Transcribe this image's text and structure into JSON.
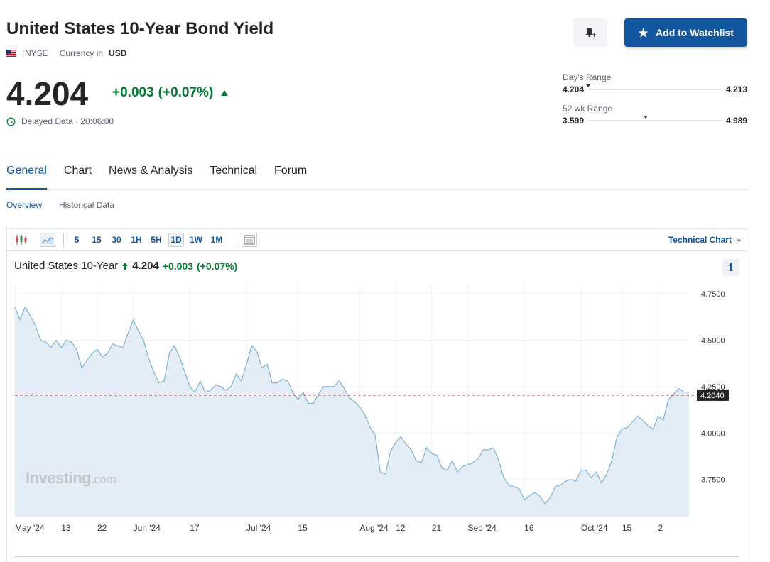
{
  "header": {
    "title": "United States 10-Year Bond Yield",
    "exchange": "NYSE",
    "currency_label": "Currency in",
    "currency": "USD",
    "watchlist_label": "Add to Watchlist"
  },
  "quote": {
    "price": "4.204",
    "change": "+0.003",
    "change_pct": "(+0.07%)",
    "delayed_text": "Delayed Data · 20:06:00"
  },
  "ranges": {
    "day": {
      "label": "Day's Range",
      "low": "4.204",
      "high": "4.213",
      "position": 0.0
    },
    "week52": {
      "label": "52 wk Range",
      "low": "3.599",
      "high": "4.989",
      "position": 0.43
    }
  },
  "tabs": [
    {
      "label": "General",
      "active": true
    },
    {
      "label": "Chart",
      "active": false
    },
    {
      "label": "News & Analysis",
      "active": false
    },
    {
      "label": "Technical",
      "active": false
    },
    {
      "label": "Forum",
      "active": false
    }
  ],
  "subtabs": [
    {
      "label": "Overview",
      "active": true
    },
    {
      "label": "Historical Data",
      "active": false
    }
  ],
  "toolbar": {
    "intervals": [
      {
        "label": "5",
        "active": false
      },
      {
        "label": "15",
        "active": false
      },
      {
        "label": "30",
        "active": false
      },
      {
        "label": "1H",
        "active": false
      },
      {
        "label": "5H",
        "active": false
      },
      {
        "label": "1D",
        "active": true
      },
      {
        "label": "1W",
        "active": false
      },
      {
        "label": "1M",
        "active": false
      }
    ],
    "technical_chart_label": "Technical Chart",
    "technical_chart_arrow": "»"
  },
  "chart_legend": {
    "name": "United States 10-Year",
    "value": "4.204",
    "change": "+0.003",
    "change_pct": "(+0.07%)",
    "info": "i"
  },
  "watermark": {
    "brand": "Investing",
    "suffix": ".com"
  },
  "colors": {
    "accent": "#1256a0",
    "positive": "#007c32",
    "line": "#7fb3d5",
    "area": "#e4edf5",
    "last_price_line": "#8b1a1a"
  },
  "chart_data": {
    "type": "area",
    "ylim": [
      3.55,
      4.8
    ],
    "y_ticks": [
      "4.7500",
      "4.5000",
      "4.2500",
      "4.0000",
      "3.7500"
    ],
    "y_tick_values": [
      4.75,
      4.5,
      4.25,
      4.0,
      3.75
    ],
    "last_value_label": "4.2040",
    "last_value": 4.204,
    "x_labels": [
      {
        "label": "May '24",
        "index": 0
      },
      {
        "label": "13",
        "index": 9
      },
      {
        "label": "22",
        "index": 16
      },
      {
        "label": "Jun '24",
        "index": 23
      },
      {
        "label": "17",
        "index": 34
      },
      {
        "label": "Jul '24",
        "index": 45
      },
      {
        "label": "15",
        "index": 55
      },
      {
        "label": "Aug '24",
        "index": 67
      },
      {
        "label": "12",
        "index": 74
      },
      {
        "label": "21",
        "index": 81
      },
      {
        "label": "Sep '24",
        "index": 88
      },
      {
        "label": "16",
        "index": 99
      },
      {
        "label": "Oct '24",
        "index": 110
      },
      {
        "label": "15",
        "index": 118
      },
      {
        "label": "2",
        "index": 125
      }
    ],
    "values": [
      4.68,
      4.61,
      4.68,
      4.63,
      4.58,
      4.5,
      4.49,
      4.46,
      4.5,
      4.46,
      4.5,
      4.49,
      4.45,
      4.35,
      4.39,
      4.43,
      4.45,
      4.41,
      4.43,
      4.48,
      4.47,
      4.46,
      4.54,
      4.61,
      4.55,
      4.5,
      4.4,
      4.33,
      4.27,
      4.28,
      4.43,
      4.47,
      4.41,
      4.33,
      4.25,
      4.22,
      4.28,
      4.22,
      4.23,
      4.26,
      4.25,
      4.23,
      4.25,
      4.32,
      4.28,
      4.37,
      4.47,
      4.44,
      4.35,
      4.37,
      4.27,
      4.27,
      4.29,
      4.28,
      4.22,
      4.18,
      4.22,
      4.16,
      4.16,
      4.21,
      4.25,
      4.25,
      4.25,
      4.28,
      4.24,
      4.19,
      4.17,
      4.14,
      4.1,
      4.03,
      3.99,
      3.79,
      3.78,
      3.9,
      3.95,
      3.98,
      3.94,
      3.91,
      3.85,
      3.84,
      3.92,
      3.89,
      3.88,
      3.81,
      3.8,
      3.85,
      3.79,
      3.82,
      3.83,
      3.84,
      3.86,
      3.91,
      3.91,
      3.92,
      3.85,
      3.76,
      3.72,
      3.71,
      3.7,
      3.64,
      3.66,
      3.68,
      3.66,
      3.62,
      3.65,
      3.71,
      3.72,
      3.74,
      3.75,
      3.74,
      3.8,
      3.8,
      3.76,
      3.79,
      3.73,
      3.78,
      3.85,
      3.98,
      4.02,
      4.03,
      4.06,
      4.09,
      4.07,
      4.04,
      4.02,
      4.09,
      4.07,
      4.18,
      4.21,
      4.24,
      4.22,
      4.22
    ]
  }
}
